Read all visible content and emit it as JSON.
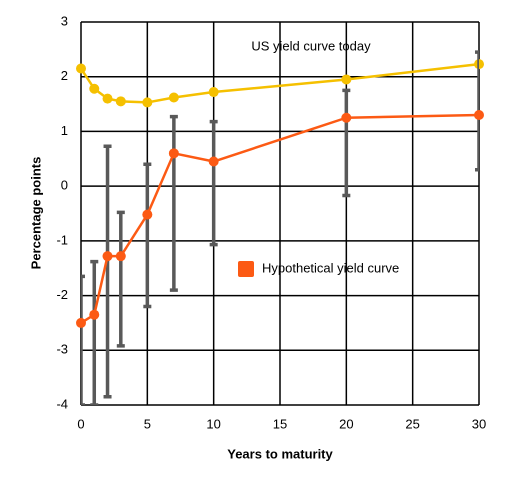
{
  "chart_data": {
    "type": "line",
    "x_label": "Years to maturity",
    "y_label": "Percentage points",
    "x": [
      0,
      1,
      2,
      3,
      5,
      7,
      10,
      20,
      30
    ],
    "series": [
      {
        "name": "US yield curve today",
        "color": "#f5c000",
        "values": [
          2.15,
          1.78,
          1.6,
          1.55,
          1.53,
          1.62,
          1.72,
          1.95,
          2.23
        ]
      },
      {
        "name": "Hypothetical yield curve",
        "color": "#fc5a14",
        "values": [
          -2.5,
          -2.35,
          -1.28,
          -1.28,
          -0.52,
          0.6,
          0.45,
          1.25,
          1.3
        ],
        "error_low": [
          -4,
          -4,
          -3.85,
          -2.92,
          -2.2,
          -1.9,
          -1.07,
          -0.17,
          0.3
        ],
        "error_high": [
          -1.65,
          -1.38,
          0.73,
          -0.48,
          0.4,
          1.27,
          1.18,
          1.75,
          2.45
        ],
        "error_color": "#595959"
      }
    ],
    "xlim": [
      0,
      30
    ],
    "xticks": [
      0,
      5,
      10,
      15,
      20,
      25,
      30
    ],
    "ylim": [
      -4,
      3
    ],
    "yticks": [
      -4,
      -3,
      -2,
      -1,
      0,
      1,
      2,
      3
    ],
    "grid": true
  }
}
